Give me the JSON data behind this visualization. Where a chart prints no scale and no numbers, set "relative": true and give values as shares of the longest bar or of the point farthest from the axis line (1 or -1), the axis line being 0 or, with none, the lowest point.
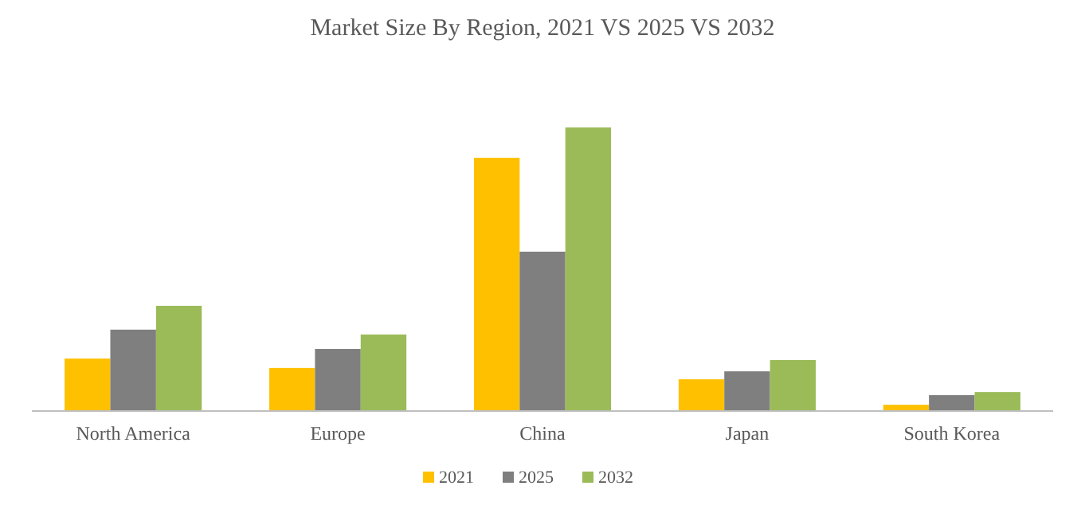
{
  "chart_data": {
    "type": "bar",
    "title": "Market Size By Region, 2021 VS 2025 VS 2032",
    "relative": true,
    "legend": "bottom",
    "categories": [
      "North America",
      "Europe",
      "China",
      "Japan",
      "South Korea"
    ],
    "series": [
      {
        "name": "2021",
        "color": "#ffc000",
        "values": [
          0.185,
          0.152,
          0.893,
          0.112,
          0.022
        ]
      },
      {
        "name": "2025",
        "color": "#7f7f7f",
        "values": [
          0.287,
          0.219,
          0.562,
          0.14,
          0.056
        ]
      },
      {
        "name": "2032",
        "color": "#9bbb59",
        "values": [
          0.371,
          0.27,
          1,
          0.18,
          0.067
        ]
      }
    ]
  }
}
